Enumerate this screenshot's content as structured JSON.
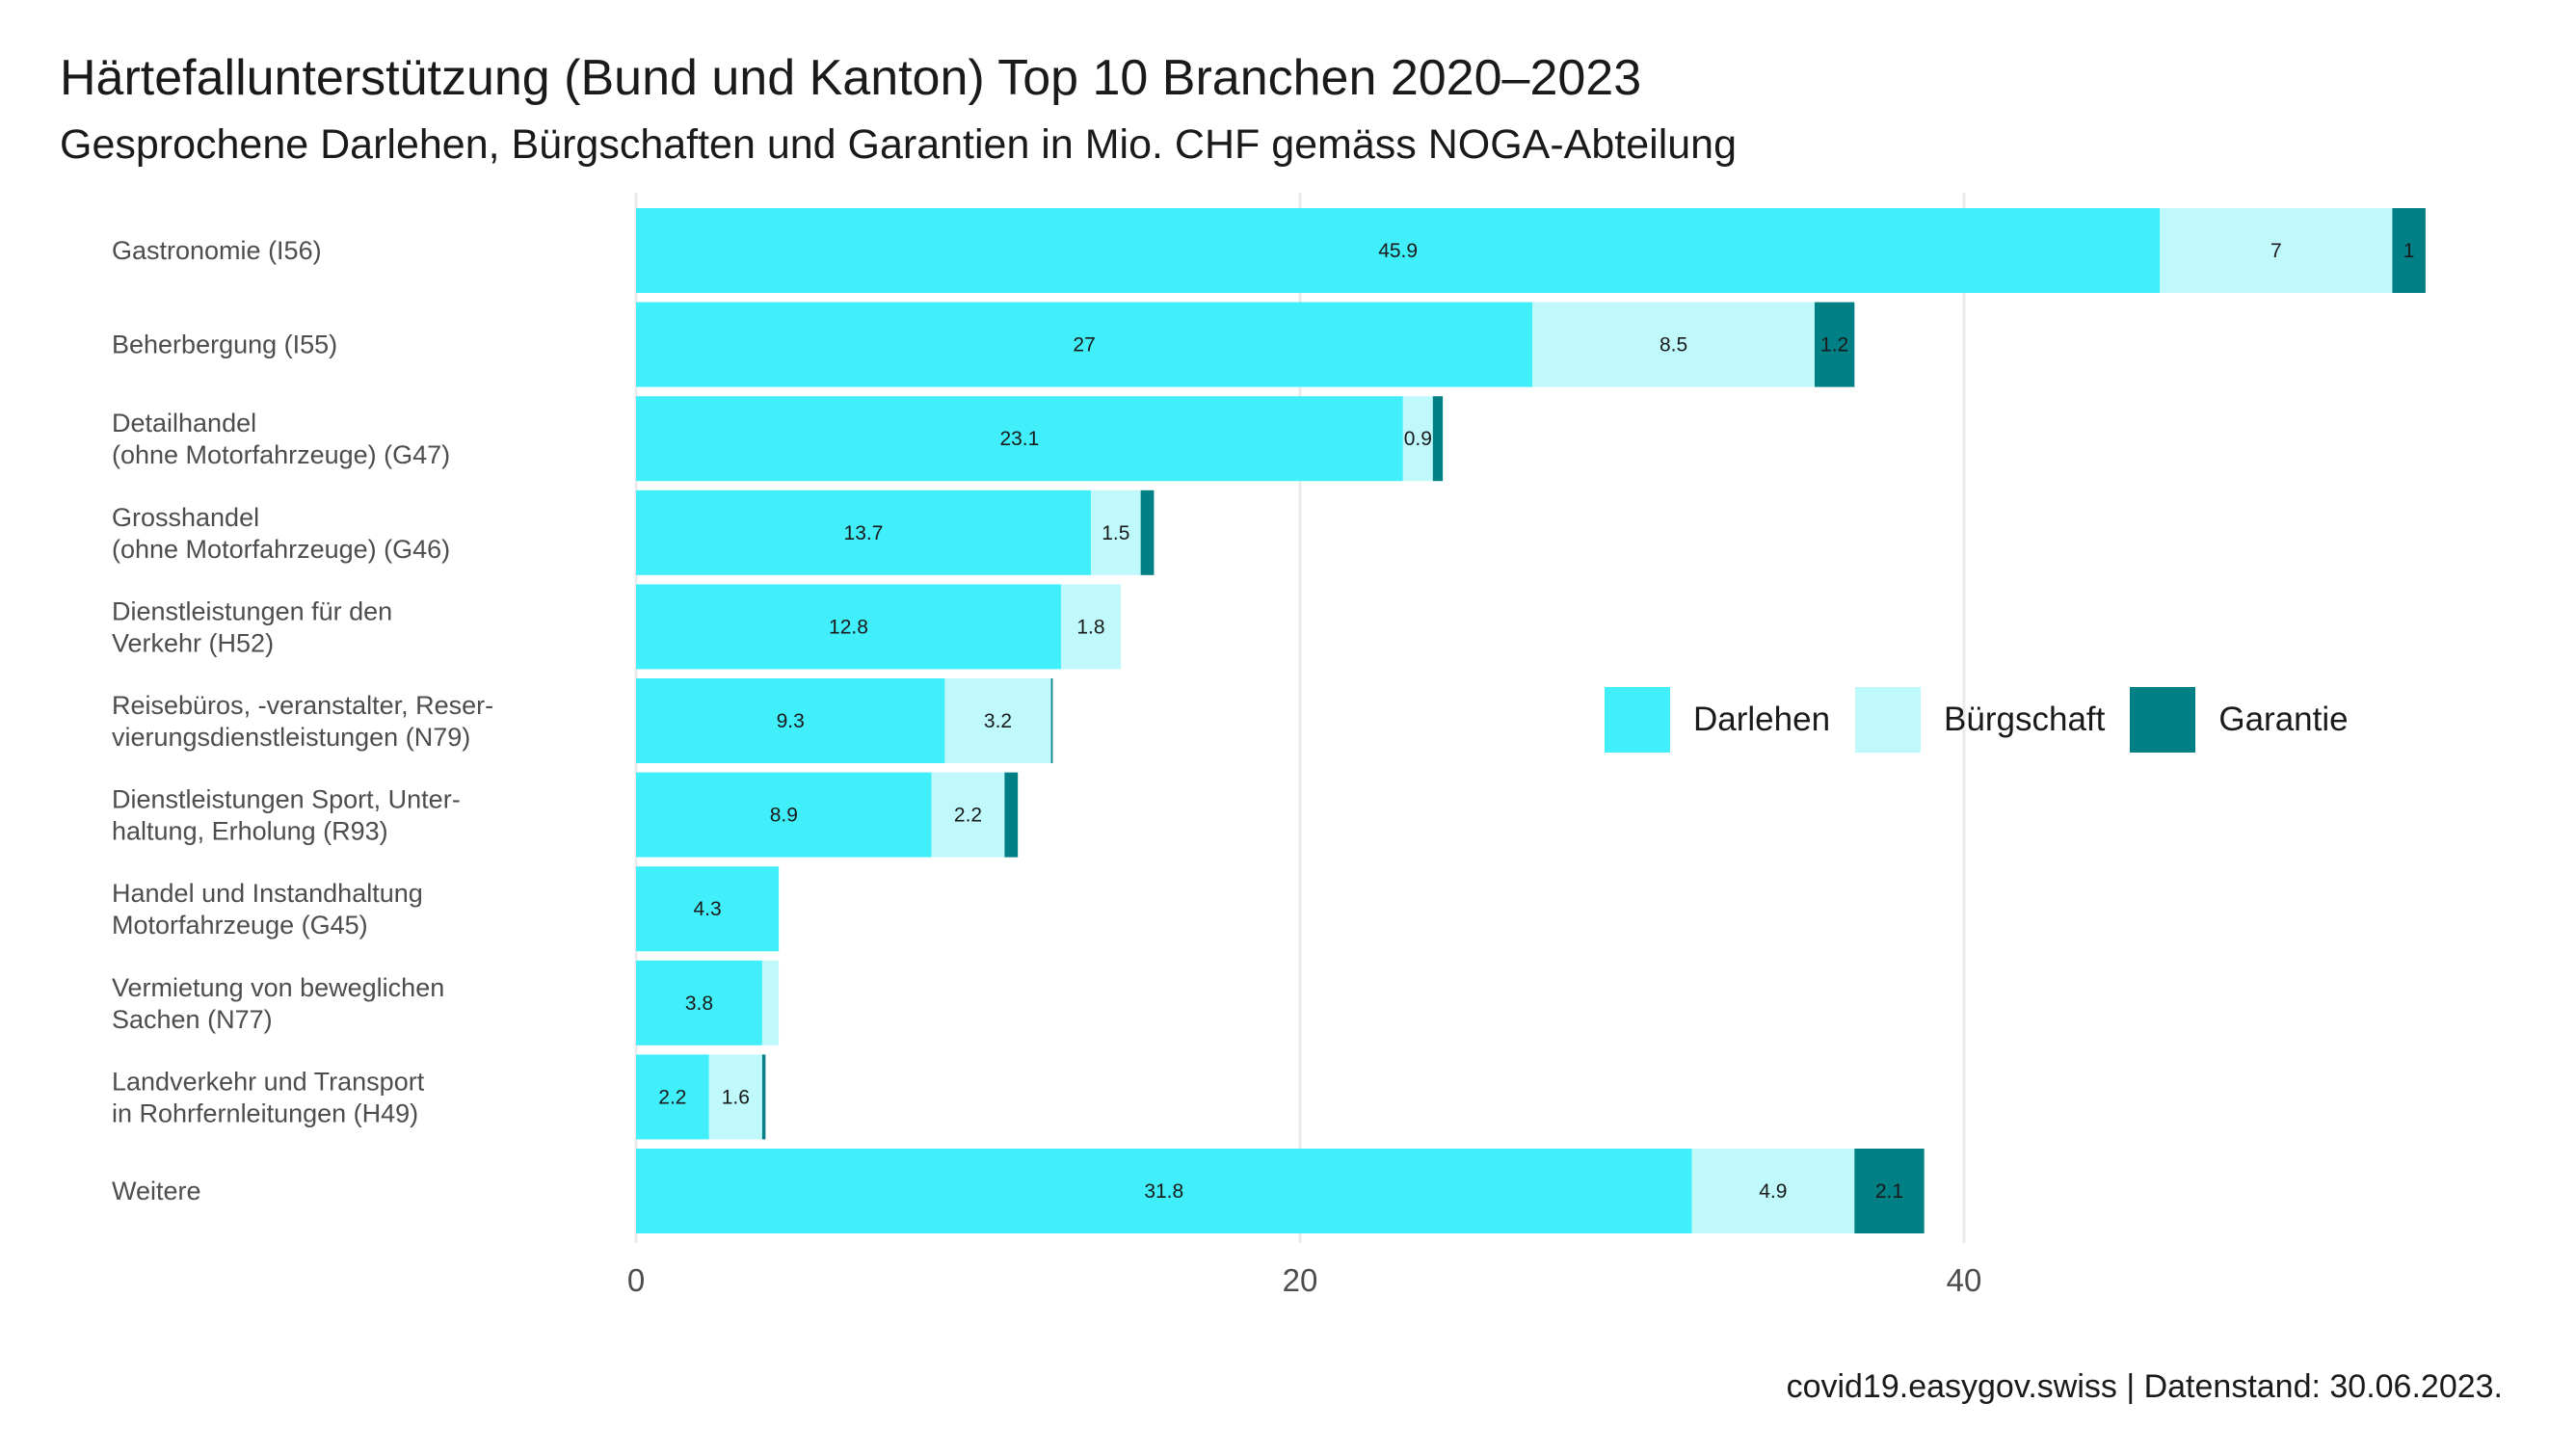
{
  "title": "Härtefallunterstützung (Bund und Kanton) Top 10 Branchen 2020–2023",
  "subtitle": "Gesprochene Darlehen, Bürgschaften und Garantien in Mio. CHF gemäss NOGA-Abteilung",
  "caption": "covid19.easygov.swiss | Datenstand: 30.06.2023.",
  "chart_data": {
    "type": "bar",
    "orientation": "horizontal",
    "stacked": true,
    "grid": true,
    "legend_position": "right-center",
    "xlim": [
      0,
      55
    ],
    "x_ticks": [
      0,
      20,
      40
    ],
    "categories": [
      [
        "Gastronomie (I56)"
      ],
      [
        "Beherbergung (I55)"
      ],
      [
        "Detailhandel",
        "(ohne Motorfahrzeuge) (G47)"
      ],
      [
        "Grosshandel",
        "(ohne Motorfahrzeuge) (G46)"
      ],
      [
        "Dienstleistungen für den",
        "Verkehr (H52)"
      ],
      [
        "Reisebüros, -veranstalter, Reser-",
        "vierungsdienstleistungen (N79)"
      ],
      [
        "Dienstleistungen Sport, Unter-",
        "haltung, Erholung (R93)"
      ],
      [
        "Handel und Instandhaltung",
        "Motorfahrzeuge (G45)"
      ],
      [
        "Vermietung von beweglichen",
        "Sachen (N77)"
      ],
      [
        "Landverkehr und Transport",
        "in Rohrfernleitungen (H49)"
      ],
      [
        "Weitere"
      ]
    ],
    "series": [
      {
        "name": "Darlehen",
        "color": "#40EFFA",
        "values": [
          45.9,
          27,
          23.1,
          13.7,
          12.8,
          9.3,
          8.9,
          4.3,
          3.8,
          2.2,
          31.8
        ],
        "labels": [
          "45.9",
          "27",
          "23.1",
          "13.7",
          "12.8",
          "9.3",
          "8.9",
          "4.3",
          "3.8",
          "2.2",
          "31.8"
        ]
      },
      {
        "name": "Bürgschaft",
        "color": "#BFF9FC",
        "values": [
          7,
          8.5,
          0.9,
          1.5,
          1.8,
          3.2,
          2.2,
          0,
          0.5,
          1.6,
          4.9
        ],
        "labels": [
          "7",
          "8.5",
          "0.9",
          "1.5",
          "1.8",
          "3.2",
          "2.2",
          "",
          "",
          "1.6",
          "4.9"
        ]
      },
      {
        "name": "Garantie",
        "color": "#007F84",
        "values": [
          1,
          1.2,
          0.3,
          0.4,
          0,
          0.05,
          0.4,
          0,
          0,
          0.1,
          2.1
        ],
        "labels": [
          "1",
          "1.2",
          "",
          "",
          "",
          "",
          "",
          "",
          "",
          "",
          "2.1"
        ]
      }
    ]
  }
}
